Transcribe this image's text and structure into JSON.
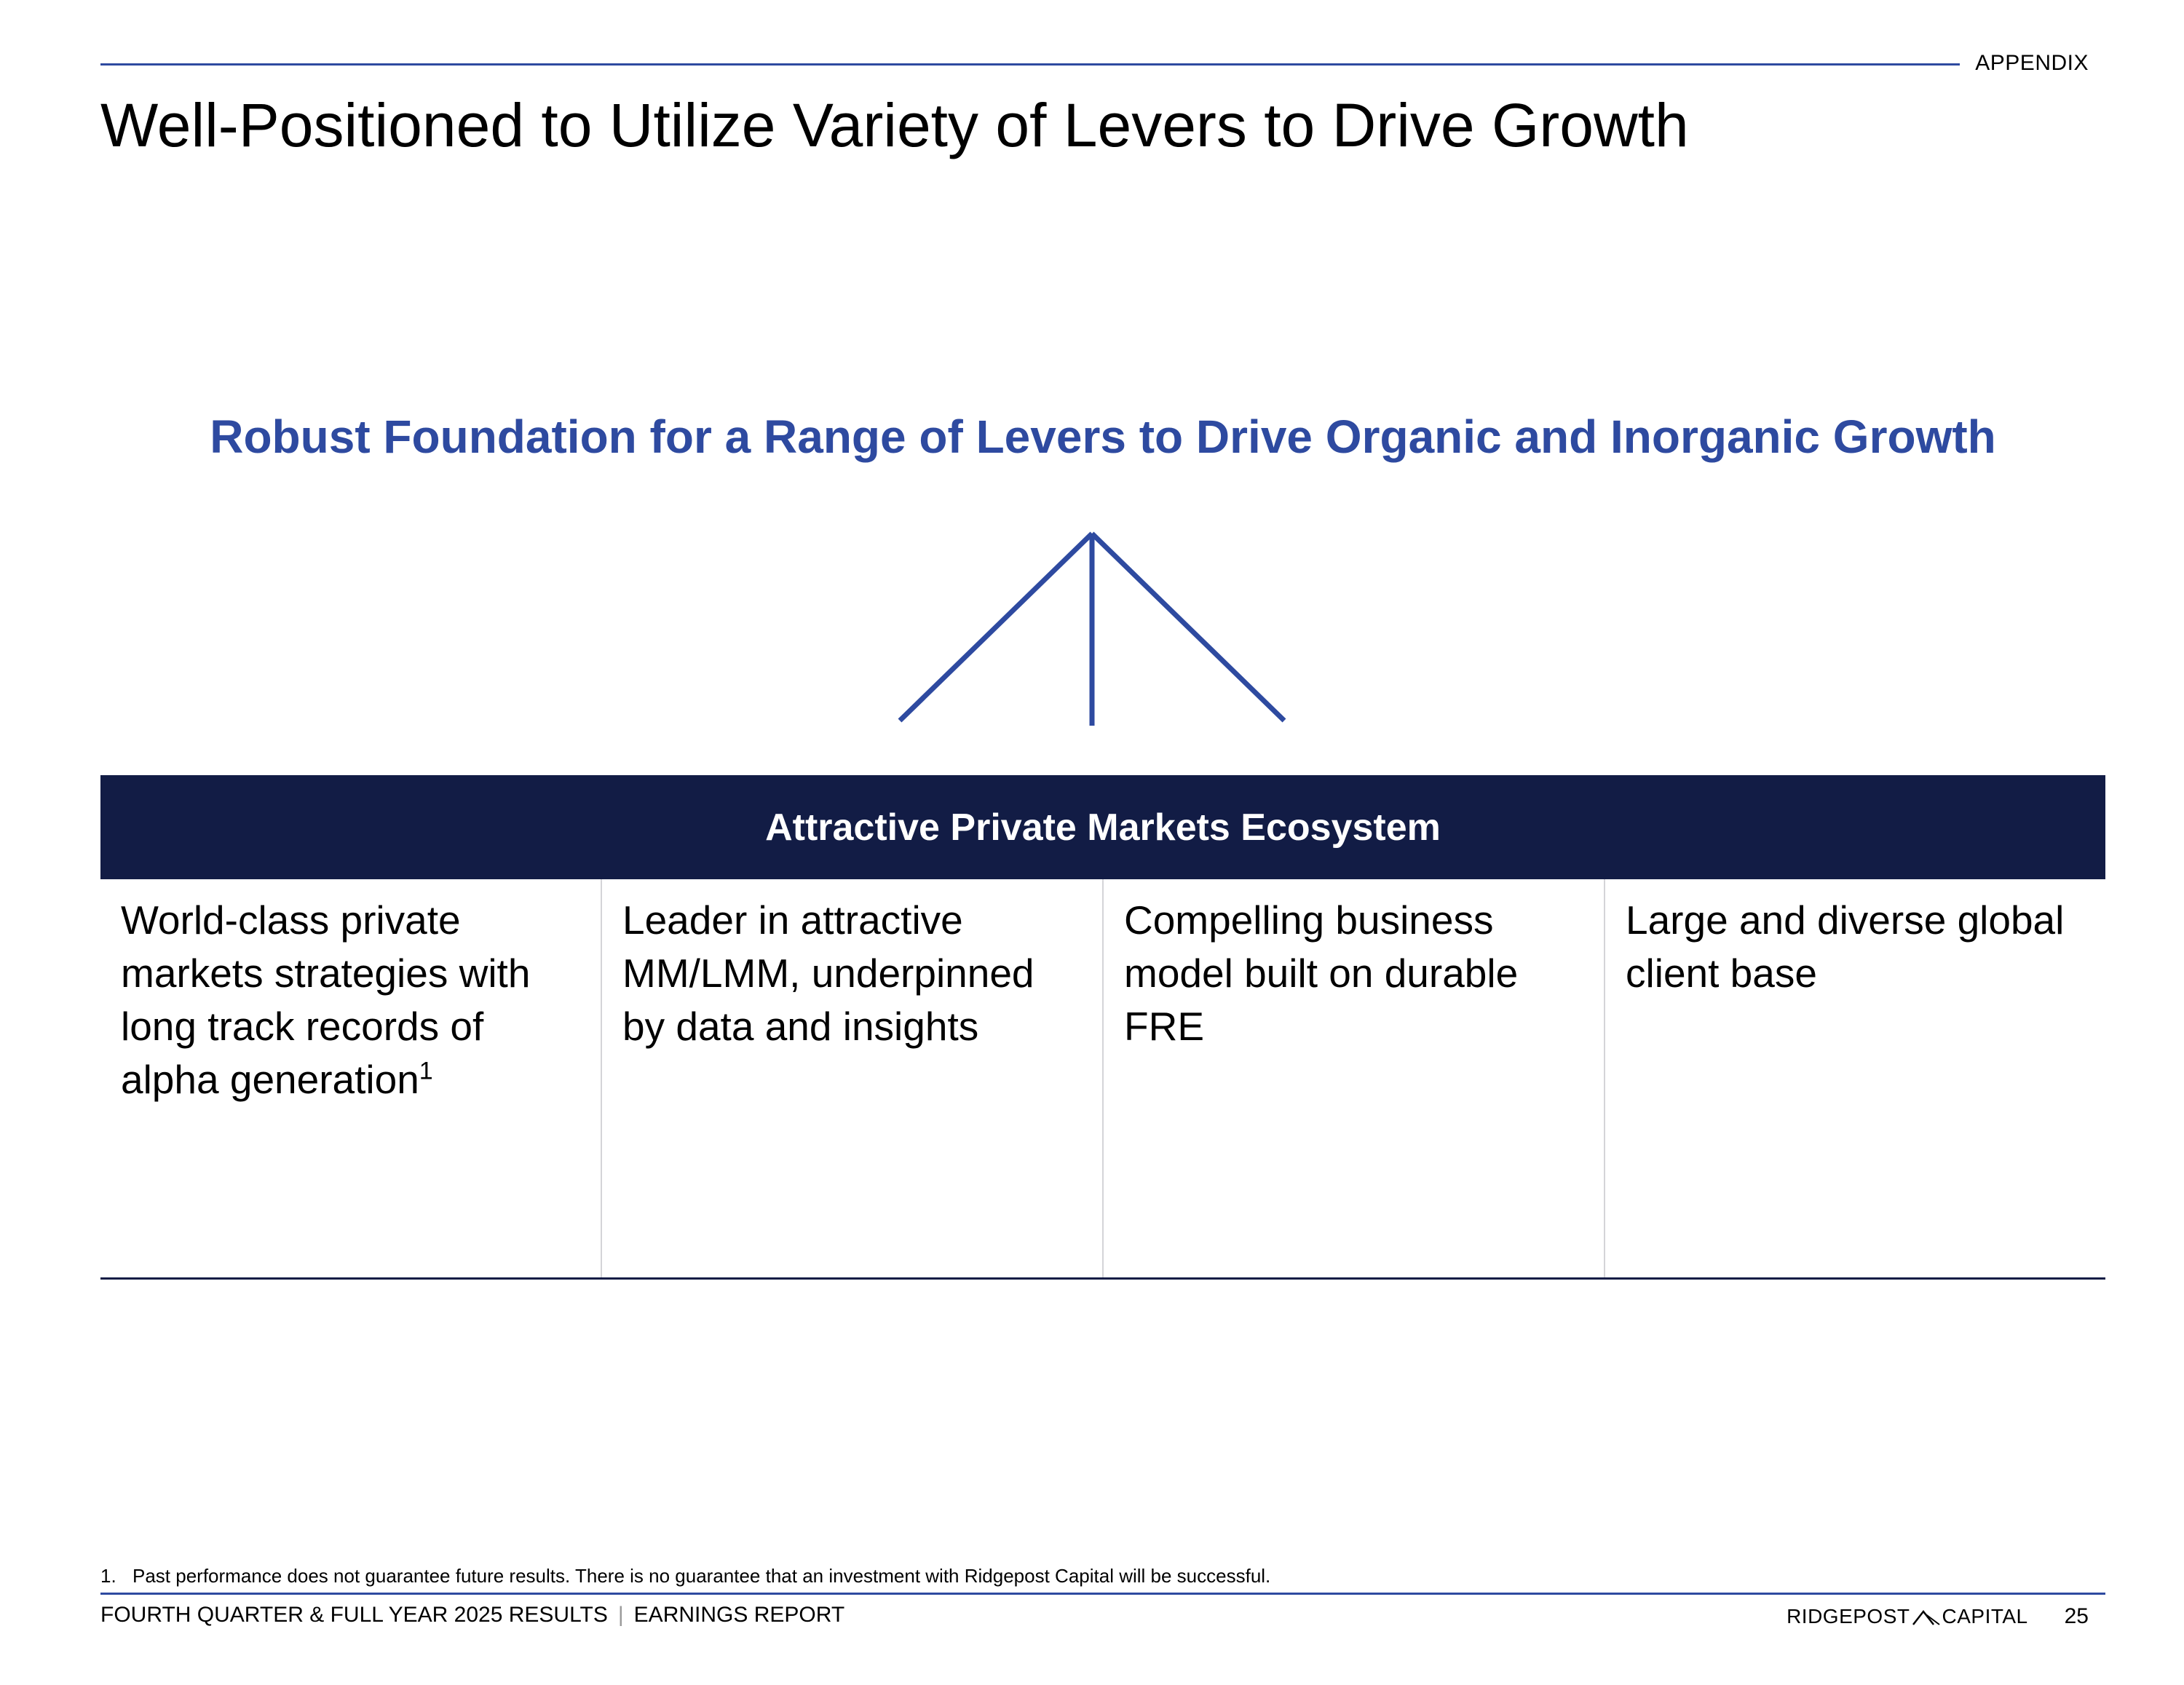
{
  "header": {
    "section_label": "APPENDIX",
    "title": "Well-Positioned to Utilize Variety of Levers to Drive Growth"
  },
  "main": {
    "subheading": "Robust Foundation for a Range of Levers to Drive Organic and Inorganic Growth",
    "ecosystem_title": "Attractive Private Markets Ecosystem",
    "pillars": [
      {
        "text": "World-class private markets strategies with long track records of alpha generation",
        "footnote_ref": "1"
      },
      {
        "text": "Leader in attractive MM/LMM, underpinned by data and insights"
      },
      {
        "text": "Compelling business model built on durable FRE"
      },
      {
        "text": "Large and diverse global client base"
      }
    ]
  },
  "footnote": {
    "number": "1.",
    "text": "Past performance does not guarantee future results. There is no guarantee that an investment with Ridgepost Capital will be successful."
  },
  "footer": {
    "report_title": "FOURTH QUARTER & FULL YEAR 2025 RESULTS",
    "separator": "|",
    "report_type": "EARNINGS REPORT",
    "logo_left": "RIDGEPOST",
    "logo_right": "CAPITAL",
    "page_number": "25"
  },
  "colors": {
    "accent_blue": "#2e4aa0",
    "navy": "#121c45",
    "divider_gray": "#d4d4d8"
  }
}
